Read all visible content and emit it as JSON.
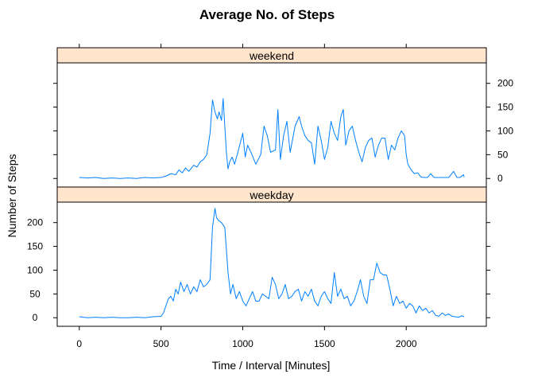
{
  "chart_data": {
    "type": "line",
    "title": "Average No. of Steps",
    "xlabel": "Time / Interval [Minutes]",
    "ylabel": "Number of Steps",
    "xlim": [
      -135,
      2490
    ],
    "ylim": [
      -18,
      243
    ],
    "x_ticks": [
      0,
      500,
      1000,
      1500,
      2000
    ],
    "y_ticks": [
      0,
      50,
      100,
      150,
      200
    ],
    "grid": false,
    "line_color": "#0080ff",
    "strip_color": "#ffe5cc",
    "panels": [
      {
        "name": "weekend",
        "y_tick_side": "right",
        "x": [
          0,
          50,
          100,
          150,
          200,
          250,
          300,
          350,
          400,
          450,
          500,
          530,
          560,
          590,
          610,
          630,
          650,
          670,
          700,
          720,
          740,
          760,
          780,
          800,
          815,
          830,
          845,
          855,
          870,
          880,
          900,
          910,
          920,
          935,
          950,
          970,
          1000,
          1015,
          1030,
          1050,
          1080,
          1110,
          1130,
          1150,
          1170,
          1200,
          1215,
          1230,
          1250,
          1270,
          1290,
          1320,
          1345,
          1360,
          1380,
          1400,
          1420,
          1440,
          1460,
          1480,
          1500,
          1520,
          1540,
          1560,
          1580,
          1600,
          1615,
          1630,
          1650,
          1670,
          1690,
          1710,
          1730,
          1750,
          1770,
          1790,
          1810,
          1830,
          1850,
          1870,
          1890,
          1910,
          1930,
          1950,
          1970,
          1990,
          2000,
          2010,
          2030,
          2050,
          2070,
          2090,
          2110,
          2130,
          2150,
          2170,
          2200,
          2230,
          2260,
          2290,
          2310,
          2330,
          2350,
          2355
        ],
        "y": [
          2,
          1,
          2,
          0,
          1,
          0,
          1,
          0,
          2,
          1,
          2,
          5,
          10,
          8,
          18,
          12,
          22,
          15,
          28,
          24,
          35,
          40,
          50,
          95,
          165,
          140,
          125,
          140,
          122,
          168,
          55,
          20,
          35,
          45,
          30,
          55,
          95,
          45,
          70,
          55,
          30,
          50,
          110,
          90,
          55,
          60,
          145,
          40,
          90,
          120,
          55,
          110,
          130,
          110,
          90,
          80,
          75,
          30,
          110,
          80,
          40,
          65,
          120,
          95,
          80,
          130,
          145,
          70,
          100,
          110,
          80,
          55,
          35,
          65,
          80,
          85,
          45,
          70,
          85,
          85,
          40,
          70,
          60,
          85,
          100,
          90,
          50,
          30,
          18,
          10,
          12,
          3,
          2,
          2,
          10,
          2,
          2,
          2,
          2,
          15,
          2,
          2,
          8,
          3
        ]
      },
      {
        "name": "weekday",
        "y_tick_side": "left",
        "x": [
          0,
          50,
          100,
          150,
          200,
          250,
          300,
          350,
          400,
          450,
          500,
          515,
          530,
          545,
          560,
          575,
          590,
          605,
          620,
          640,
          660,
          680,
          700,
          720,
          740,
          760,
          780,
          800,
          815,
          830,
          840,
          850,
          870,
          890,
          910,
          925,
          940,
          960,
          980,
          1000,
          1020,
          1040,
          1060,
          1080,
          1100,
          1120,
          1140,
          1160,
          1180,
          1200,
          1220,
          1240,
          1260,
          1280,
          1300,
          1320,
          1340,
          1360,
          1380,
          1400,
          1420,
          1440,
          1460,
          1480,
          1500,
          1520,
          1540,
          1560,
          1580,
          1600,
          1620,
          1640,
          1660,
          1680,
          1700,
          1720,
          1740,
          1760,
          1780,
          1800,
          1820,
          1840,
          1860,
          1880,
          1900,
          1920,
          1940,
          1960,
          1980,
          2000,
          2020,
          2040,
          2060,
          2080,
          2100,
          2120,
          2140,
          2160,
          2180,
          2200,
          2220,
          2240,
          2260,
          2280,
          2300,
          2320,
          2340,
          2355
        ],
        "y": [
          2,
          0,
          1,
          0,
          1,
          0,
          0,
          1,
          0,
          2,
          3,
          10,
          25,
          40,
          45,
          35,
          60,
          50,
          75,
          55,
          70,
          50,
          65,
          55,
          80,
          65,
          70,
          80,
          190,
          230,
          210,
          205,
          200,
          190,
          95,
          50,
          70,
          40,
          55,
          35,
          25,
          40,
          55,
          35,
          35,
          50,
          45,
          40,
          85,
          70,
          40,
          50,
          70,
          40,
          45,
          55,
          60,
          35,
          55,
          45,
          60,
          35,
          25,
          45,
          55,
          40,
          30,
          95,
          45,
          60,
          40,
          45,
          25,
          35,
          55,
          80,
          45,
          30,
          80,
          80,
          115,
          95,
          90,
          90,
          60,
          25,
          45,
          30,
          35,
          20,
          30,
          25,
          10,
          25,
          15,
          20,
          10,
          15,
          5,
          3,
          10,
          5,
          8,
          3,
          2,
          1,
          4,
          2
        ]
      }
    ]
  }
}
